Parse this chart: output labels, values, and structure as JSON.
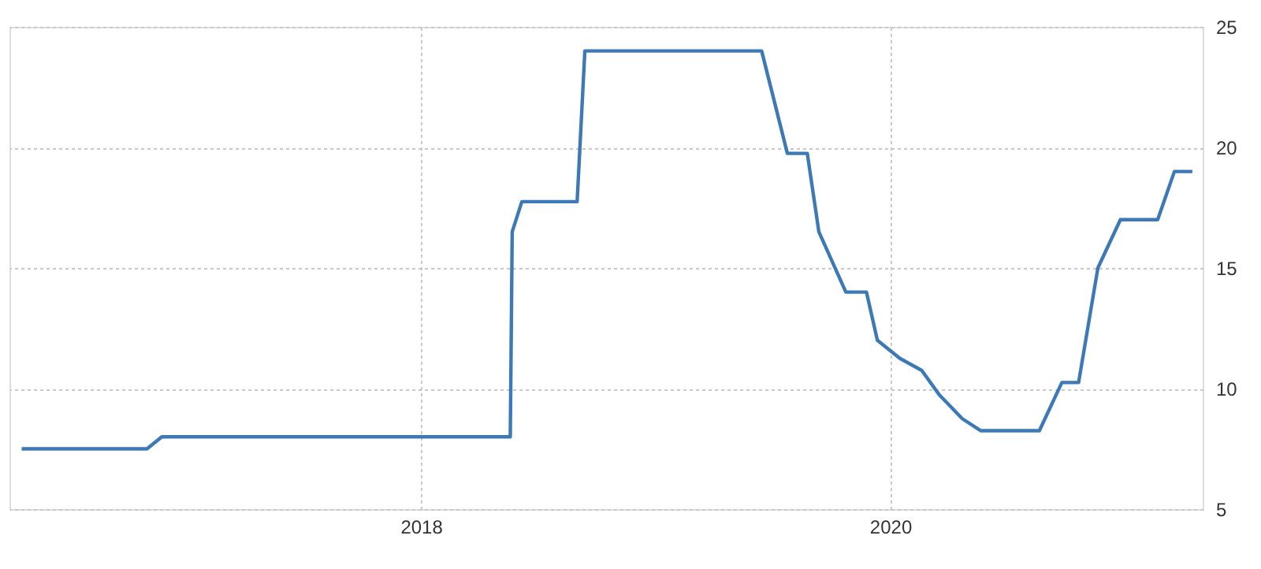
{
  "chart_data": {
    "type": "line",
    "xlim": [
      "2016-04-01",
      "2021-05-01"
    ],
    "xticks": [
      {
        "value": "2018-01-01",
        "label": "2018"
      },
      {
        "value": "2020-01-01",
        "label": "2020"
      }
    ],
    "ylim": [
      5,
      25
    ],
    "yticks": [
      5,
      10,
      15,
      20,
      25
    ],
    "grid": true,
    "line_style": "solid",
    "marker": "none",
    "series": [
      {
        "color": "#3d7ab5",
        "x": [
          "2016-04-20",
          "2016-11-01",
          "2016-11-24",
          "2018-05-20",
          "2018-05-23",
          "2018-06-07",
          "2018-09-01",
          "2018-09-13",
          "2019-06-15",
          "2019-07-25",
          "2019-08-25",
          "2019-09-12",
          "2019-10-24",
          "2019-11-25",
          "2019-12-12",
          "2020-01-16",
          "2020-02-19",
          "2020-03-17",
          "2020-04-22",
          "2020-05-21",
          "2020-08-20",
          "2020-09-24",
          "2020-10-20",
          "2020-11-19",
          "2020-12-24",
          "2021-02-20",
          "2021-03-18",
          "2021-04-15"
        ],
        "values": [
          7.5,
          7.5,
          8,
          8,
          16.5,
          17.75,
          17.75,
          24,
          24,
          19.75,
          19.75,
          16.5,
          14,
          14,
          12,
          11.25,
          10.75,
          9.75,
          8.75,
          8.25,
          8.25,
          10.25,
          10.25,
          15,
          17,
          17,
          19,
          19
        ]
      }
    ]
  }
}
